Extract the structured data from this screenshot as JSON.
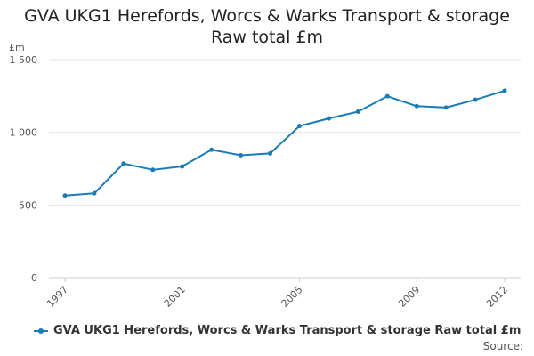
{
  "title_line1": "GVA UKG1 Herefords, Worcs & Warks Transport & storage",
  "title_line2": "Raw total £m",
  "source": "Source:",
  "colors": {
    "series": "#1a7cb7",
    "grid": "#e6e6e6",
    "axis": "#cccccc"
  },
  "chart_data": {
    "type": "line",
    "title": "GVA UKG1 Herefords, Worcs & Warks Transport & storage Raw total £m",
    "ylabel": "£m",
    "xlabel": "",
    "ylim": [
      0,
      1500
    ],
    "yticks": [
      0,
      500,
      1000,
      1500
    ],
    "ytick_labels": [
      "0",
      "500",
      "1 000",
      "1 500"
    ],
    "xlim": [
      1997,
      2012
    ],
    "xticks": [
      1997,
      2001,
      2005,
      2009,
      2012
    ],
    "xtick_labels": [
      "1997",
      "2001",
      "2005",
      "2009",
      "2012"
    ],
    "grid": true,
    "legend_position": "bottom",
    "series": [
      {
        "name": "GVA UKG1 Herefords, Worcs & Warks Transport & storage Raw total £m",
        "x": [
          1997,
          1998,
          1999,
          2000,
          2001,
          2002,
          2003,
          2004,
          2005,
          2006,
          2007,
          2008,
          2009,
          2010,
          2011,
          2012
        ],
        "values": [
          565,
          580,
          785,
          742,
          765,
          880,
          842,
          855,
          1043,
          1095,
          1142,
          1248,
          1180,
          1170,
          1224,
          1286
        ]
      }
    ]
  }
}
